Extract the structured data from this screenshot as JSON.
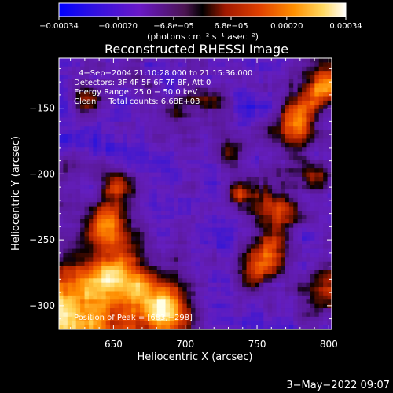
{
  "chart_data": {
    "type": "heatmap",
    "title": "Reconstructed RHESSI Image",
    "xlabel": "Heliocentric X (arcsec)",
    "ylabel": "Heliocentric Y (arcsec)",
    "xlim": [
      612,
      802
    ],
    "ylim": [
      -318,
      -112
    ],
    "x_ticks": [
      650,
      700,
      750,
      800
    ],
    "x_tick_labels": [
      "650",
      "700",
      "750",
      "800"
    ],
    "y_ticks": [
      -150,
      -200,
      -250,
      -300
    ],
    "y_tick_labels": [
      "−150",
      "−200",
      "−250",
      "−300"
    ],
    "colorbar": {
      "range": [
        -0.00034,
        0.00034
      ],
      "ticks": [
        -0.00034,
        -0.0002,
        -6.8e-05,
        6.8e-05,
        0.0002,
        0.00034
      ],
      "tick_labels": [
        "−0.00034",
        "−0.00020",
        "−6.8e−05",
        "6.8e−05",
        "0.00020",
        "0.00034"
      ],
      "units": "(photons cm⁻² s⁻¹ asec⁻²)"
    },
    "annotations": {
      "time_range": "4−Sep−2004 21:10:28.000 to 21:15:36.000",
      "detectors": "Detectors: 3F 4F 5F 6F 7F 8F, Att 0",
      "energy_range": "Energy Range: 25.0 − 50.0 keV",
      "clean_counts": "Clean     Total counts: 6.68E+03",
      "peak_position": "Position of Peak = [683,−298]"
    },
    "peak": [
      683,
      -298
    ],
    "grid": false,
    "legend": "none"
  },
  "footer_date": "3−May−2022 09:07",
  "colors": {
    "background": "#000000",
    "text": "#ffffff",
    "colormap": [
      "#1010ff",
      "#5a10c8",
      "#7b2fbf",
      "#1a0500",
      "#e04000",
      "#ff8800",
      "#ffd040",
      "#fff8d0"
    ]
  }
}
